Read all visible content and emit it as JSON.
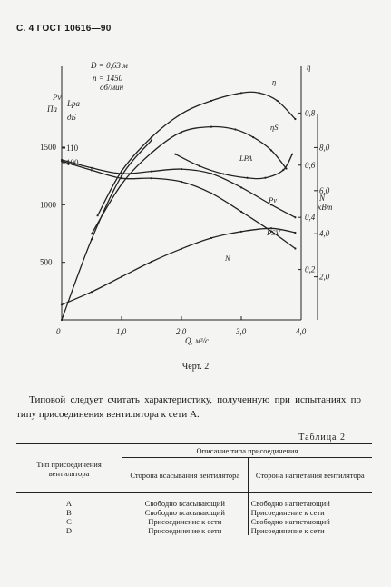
{
  "header": "С. 4 ГОСТ 10616—90",
  "chart_data": {
    "type": "line",
    "xlabel": "Q, м³/с",
    "x_ticks": [
      "0",
      "1,0",
      "2,0",
      "3,0",
      "4,0"
    ],
    "xlim": [
      0,
      4.0
    ],
    "annotations": [
      "D = 0,63 м",
      "n = 1450",
      "об/мин"
    ],
    "left_axis_1": {
      "label_top": "Pv",
      "label_bottom": "Па",
      "ticks": [
        "500",
        "1000",
        "1500"
      ],
      "ylim": [
        0,
        1500
      ]
    },
    "left_axis_2": {
      "label_top": "Lpa",
      "label_bottom": "дБ",
      "ticks": [
        "100",
        "110"
      ],
      "ylim": [
        90,
        115
      ]
    },
    "right_axis_eta": {
      "label": "η",
      "ticks": [
        "0,2",
        "0,4",
        "0,6",
        "0,8"
      ],
      "ylim": [
        0,
        1.0
      ]
    },
    "right_axis_N": {
      "label_top": "N",
      "label_bottom": "кВт",
      "ticks": [
        "2,0",
        "4,0",
        "6,0",
        "8,0"
      ],
      "ylim": [
        0,
        10
      ]
    },
    "series": [
      {
        "name": "η",
        "x": [
          0.6,
          1.0,
          1.5,
          2.0,
          2.5,
          3.0,
          3.3,
          3.6,
          3.9
        ],
        "values": [
          0.4,
          0.57,
          0.7,
          0.79,
          0.84,
          0.87,
          0.87,
          0.84,
          0.77
        ]
      },
      {
        "name": "ηS",
        "x": [
          0.5,
          1.0,
          1.5,
          2.0,
          2.5,
          2.9,
          3.2,
          3.5,
          3.75
        ],
        "values": [
          0.33,
          0.52,
          0.64,
          0.72,
          0.74,
          0.73,
          0.7,
          0.65,
          0.58
        ]
      },
      {
        "name": "Pv",
        "x": [
          0,
          0.5,
          1.0,
          1.5,
          2.0,
          2.5,
          3.0,
          3.5,
          3.9
        ],
        "values": [
          1390,
          1320,
          1270,
          1290,
          1310,
          1270,
          1150,
          1000,
          890
        ]
      },
      {
        "name": "PSV",
        "x": [
          0,
          0.5,
          1.0,
          1.5,
          2.0,
          2.5,
          3.0,
          3.5,
          3.9
        ],
        "values": [
          1380,
          1300,
          1230,
          1230,
          1200,
          1100,
          940,
          770,
          620
        ]
      },
      {
        "name": "LPA",
        "x": [
          1.9,
          2.3,
          2.7,
          3.1,
          3.4,
          3.7,
          3.85
        ],
        "values": [
          111,
          109.5,
          108.5,
          108,
          108,
          109,
          111
        ]
      },
      {
        "name": "N",
        "x": [
          0,
          0.5,
          1.0,
          1.5,
          2.0,
          2.5,
          3.0,
          3.5,
          3.9
        ],
        "values": [
          0.7,
          1.3,
          2.0,
          2.7,
          3.3,
          3.8,
          4.1,
          4.25,
          4.05
        ]
      },
      {
        "name": "",
        "x": [
          0,
          0.5,
          1.0,
          1.5
        ],
        "values": [
          0,
          700,
          1250,
          1560
        ]
      }
    ]
  },
  "caption": "Черт. 2",
  "paragraph": "Типовой следует считать характеристику, полученную при испытаниях по типу присоединения вентилятора к сети А.",
  "table_caption": "Таблица 2",
  "table": {
    "col1_header": "Тип присоединения вентилятора",
    "group_header": "Описание типа присоединения",
    "col2_header": "Сторона всасывания вентилятора",
    "col3_header": "Сторона нагнетания вентилятора",
    "rows": [
      [
        "A",
        "Свободно всасывающий",
        "Свободно нагнетающий"
      ],
      [
        "B",
        "Свободно всасывающий",
        "Присоединение к сети"
      ],
      [
        "C",
        "Присоединение к сети",
        "Свободно нагнетающий"
      ],
      [
        "D",
        "Присоединение к сети",
        "Присоединение к сети"
      ]
    ]
  }
}
